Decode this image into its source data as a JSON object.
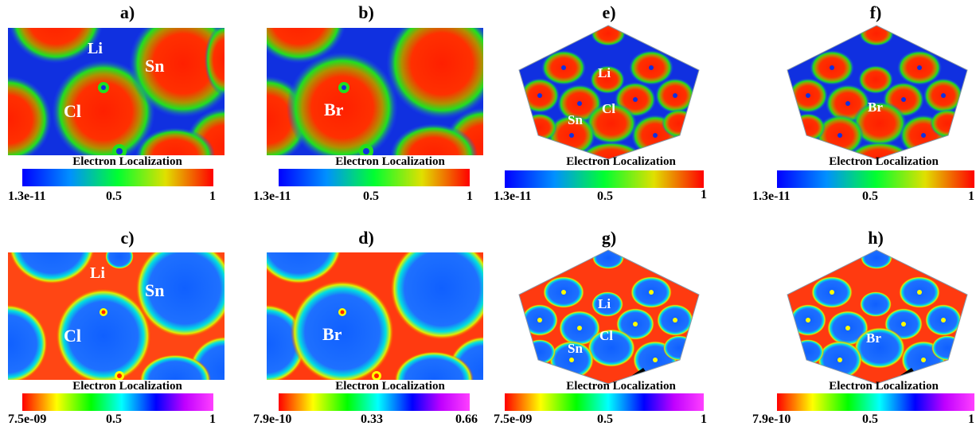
{
  "panels": {
    "a": {
      "label": "a)",
      "atoms": [
        "Li",
        "Sn",
        "Cl"
      ]
    },
    "b": {
      "label": "b)",
      "atoms": [
        "Br"
      ]
    },
    "c": {
      "label": "c)",
      "atoms": [
        "Li",
        "Sn",
        "Cl"
      ]
    },
    "d": {
      "label": "d)",
      "atoms": [
        "Br"
      ]
    },
    "e": {
      "label": "e)",
      "atoms": [
        "Li",
        "Cl",
        "Sn"
      ]
    },
    "f": {
      "label": "f)",
      "atoms": [
        "Br"
      ]
    },
    "g": {
      "label": "g)",
      "atoms": [
        "Li",
        "Cl",
        "Sn"
      ]
    },
    "h": {
      "label": "h)",
      "atoms": [
        "Br"
      ]
    }
  },
  "colorbars": {
    "caption": "Electron Localization",
    "a": {
      "ticks": [
        "1.3e-11",
        "0.5",
        "1"
      ]
    },
    "b": {
      "ticks": [
        "1.3e-11",
        "0.5",
        "1"
      ]
    },
    "e": {
      "ticks": [
        "1.3e-11",
        "0.5",
        "1"
      ]
    },
    "f": {
      "ticks": [
        "1.3e-11",
        "0.5",
        "1"
      ]
    },
    "c": {
      "ticks": [
        "7.5e-09",
        "0.5",
        "1"
      ]
    },
    "d": {
      "ticks": [
        "7.9e-10",
        "0.33",
        "0.66"
      ]
    },
    "g": {
      "ticks": [
        "7.5e-09",
        "0.5",
        "1"
      ]
    },
    "h": {
      "ticks": [
        "7.9e-10",
        "0.5",
        "1"
      ]
    }
  },
  "colors": {
    "top_scale": [
      "#0000ff",
      "#00c0ff",
      "#00ff00",
      "#ffff00",
      "#ff0000"
    ],
    "bottom_scale": [
      "#ff0000",
      "#ffff00",
      "#00ff00",
      "#00ffff",
      "#0000ff",
      "#ff00ff"
    ]
  }
}
